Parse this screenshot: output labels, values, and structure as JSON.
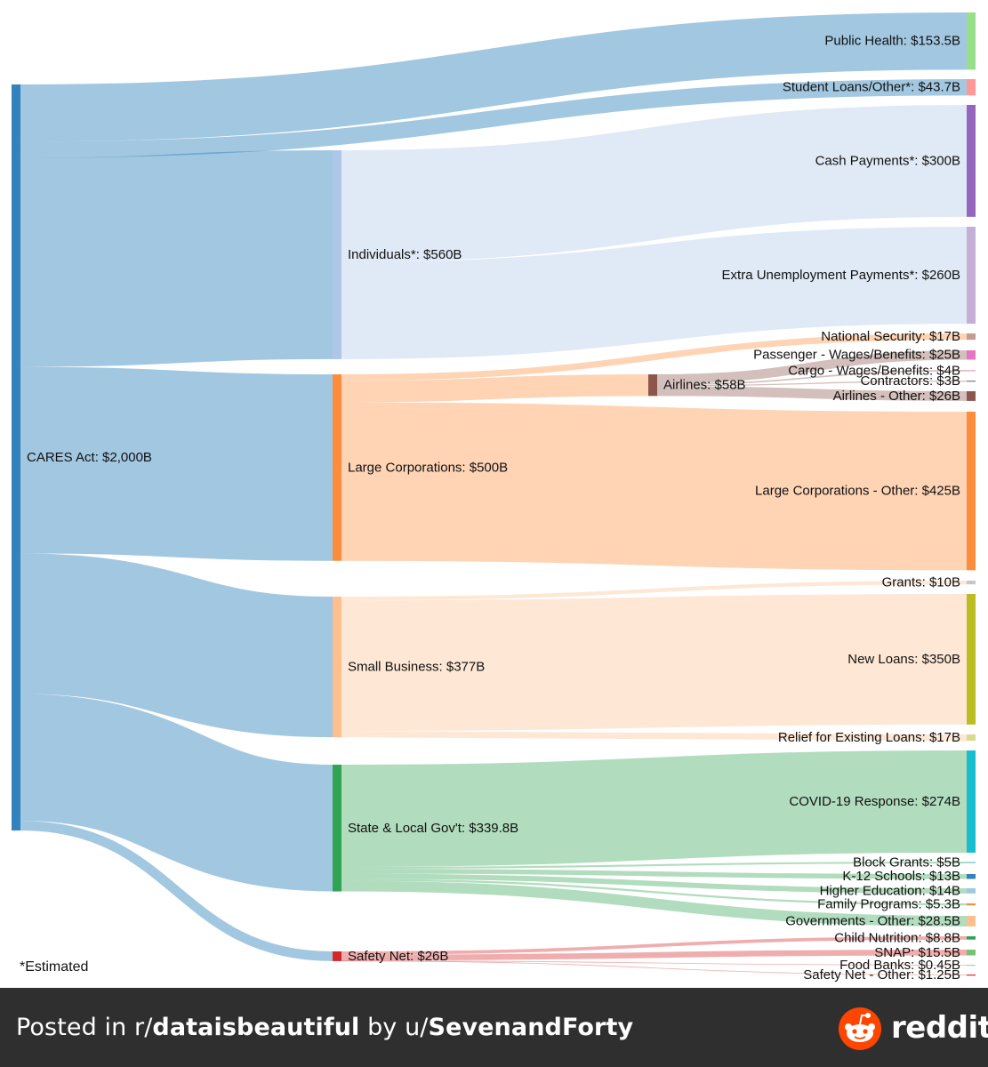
{
  "chart_data": {
    "type": "sankey",
    "units": "billions USD",
    "nodes": [
      {
        "id": "cares",
        "label": "CARES Act: $2,000B",
        "value": 2000,
        "color": "#3182bd"
      },
      {
        "id": "public_health",
        "label": "Public Health: $153.5B",
        "value": 153.5,
        "color": "#98df8a"
      },
      {
        "id": "student_loans",
        "label": "Student Loans/Other*: $43.7B",
        "value": 43.7,
        "color": "#ff9896"
      },
      {
        "id": "individuals",
        "label": "Individuals*: $560B",
        "value": 560,
        "color": "#aec7e8"
      },
      {
        "id": "large_corps",
        "label": "Large Corporations: $500B",
        "value": 500,
        "color": "#fd8d3c"
      },
      {
        "id": "small_business",
        "label": "Small Business: $377B",
        "value": 377,
        "color": "#fdbf8e"
      },
      {
        "id": "state_local",
        "label": "State & Local Gov't: $339.8B",
        "value": 339.8,
        "color": "#31a354"
      },
      {
        "id": "safety_net",
        "label": "Safety Net: $26B",
        "value": 26,
        "color": "#d62728"
      },
      {
        "id": "cash_payments",
        "label": "Cash Payments*: $300B",
        "value": 300,
        "color": "#9467bd"
      },
      {
        "id": "unemployment",
        "label": "Extra Unemployment Payments*: $260B",
        "value": 260,
        "color": "#c5b0d5"
      },
      {
        "id": "national_security",
        "label": "National Security: $17B",
        "value": 17,
        "color": "#c49c94"
      },
      {
        "id": "airlines",
        "label": "Airlines: $58B",
        "value": 58,
        "color": "#8c564b"
      },
      {
        "id": "lc_other",
        "label": "Large Corporations - Other: $425B",
        "value": 425,
        "color": "#fd8d3c"
      },
      {
        "id": "passenger",
        "label": "Passenger - Wages/Benefits: $25B",
        "value": 25,
        "color": "#e377c2"
      },
      {
        "id": "cargo",
        "label": "Cargo - Wages/Benefits: $4B",
        "value": 4,
        "color": "#f7b6d2"
      },
      {
        "id": "contractors",
        "label": "Contractors: $3B",
        "value": 3,
        "color": "#7f7f7f"
      },
      {
        "id": "airlines_other",
        "label": "Airlines - Other: $26B",
        "value": 26,
        "color": "#8c564b"
      },
      {
        "id": "grants",
        "label": "Grants: $10B",
        "value": 10,
        "color": "#c7c7c7"
      },
      {
        "id": "new_loans",
        "label": "New Loans: $350B",
        "value": 350,
        "color": "#bcbd22"
      },
      {
        "id": "relief_loans",
        "label": "Relief for Existing Loans: $17B",
        "value": 17,
        "color": "#dbdb8d"
      },
      {
        "id": "covid_response",
        "label": "COVID-19 Response: $274B",
        "value": 274,
        "color": "#17becf"
      },
      {
        "id": "block_grants",
        "label": "Block Grants: $5B",
        "value": 5,
        "color": "#9edae5"
      },
      {
        "id": "k12",
        "label": "K-12 Schools: $13B",
        "value": 13,
        "color": "#3182bd"
      },
      {
        "id": "higher_ed",
        "label": "Higher Education: $14B",
        "value": 14,
        "color": "#9ecae1"
      },
      {
        "id": "family_programs",
        "label": "Family Programs: $5.3B",
        "value": 5.3,
        "color": "#fd8d3c"
      },
      {
        "id": "gov_other",
        "label": "Governments - Other: $28.5B",
        "value": 28.5,
        "color": "#fdbf8e"
      },
      {
        "id": "child_nutrition",
        "label": "Child Nutrition: $8.8B",
        "value": 8.8,
        "color": "#31a354"
      },
      {
        "id": "snap",
        "label": "SNAP: $15.5B",
        "value": 15.5,
        "color": "#74c476"
      },
      {
        "id": "food_banks",
        "label": "Food Banks: $0.45B",
        "value": 0.45,
        "color": "#a1d99b"
      },
      {
        "id": "safety_other",
        "label": "Safety Net - Other: $1.25B",
        "value": 1.25,
        "color": "#d62728"
      }
    ],
    "links": [
      {
        "source": "cares",
        "target": "public_health",
        "value": 153.5
      },
      {
        "source": "cares",
        "target": "student_loans",
        "value": 43.7
      },
      {
        "source": "cares",
        "target": "individuals",
        "value": 560
      },
      {
        "source": "cares",
        "target": "large_corps",
        "value": 500
      },
      {
        "source": "cares",
        "target": "small_business",
        "value": 377
      },
      {
        "source": "cares",
        "target": "state_local",
        "value": 339.8
      },
      {
        "source": "cares",
        "target": "safety_net",
        "value": 26
      },
      {
        "source": "individuals",
        "target": "cash_payments",
        "value": 300
      },
      {
        "source": "individuals",
        "target": "unemployment",
        "value": 260
      },
      {
        "source": "large_corps",
        "target": "national_security",
        "value": 17
      },
      {
        "source": "large_corps",
        "target": "airlines",
        "value": 58
      },
      {
        "source": "large_corps",
        "target": "lc_other",
        "value": 425
      },
      {
        "source": "airlines",
        "target": "passenger",
        "value": 25
      },
      {
        "source": "airlines",
        "target": "cargo",
        "value": 4
      },
      {
        "source": "airlines",
        "target": "contractors",
        "value": 3
      },
      {
        "source": "airlines",
        "target": "airlines_other",
        "value": 26
      },
      {
        "source": "small_business",
        "target": "grants",
        "value": 10
      },
      {
        "source": "small_business",
        "target": "new_loans",
        "value": 350
      },
      {
        "source": "small_business",
        "target": "relief_loans",
        "value": 17
      },
      {
        "source": "state_local",
        "target": "covid_response",
        "value": 274
      },
      {
        "source": "state_local",
        "target": "block_grants",
        "value": 5
      },
      {
        "source": "state_local",
        "target": "k12",
        "value": 13
      },
      {
        "source": "state_local",
        "target": "higher_ed",
        "value": 14
      },
      {
        "source": "state_local",
        "target": "family_programs",
        "value": 5.3
      },
      {
        "source": "state_local",
        "target": "gov_other",
        "value": 28.5
      },
      {
        "source": "safety_net",
        "target": "child_nutrition",
        "value": 8.8
      },
      {
        "source": "safety_net",
        "target": "snap",
        "value": 15.5
      },
      {
        "source": "safety_net",
        "target": "food_banks",
        "value": 0.45
      },
      {
        "source": "safety_net",
        "target": "safety_other",
        "value": 1.25
      }
    ]
  },
  "footnote": "*Estimated",
  "footer": {
    "prefix": "Posted in r/",
    "subreddit": "dataisbeautiful",
    "middle": " by u/",
    "user": "SevenandForty",
    "brand": "reddit",
    "background": "#2f2f2f",
    "logo_color": "#ff4500"
  }
}
